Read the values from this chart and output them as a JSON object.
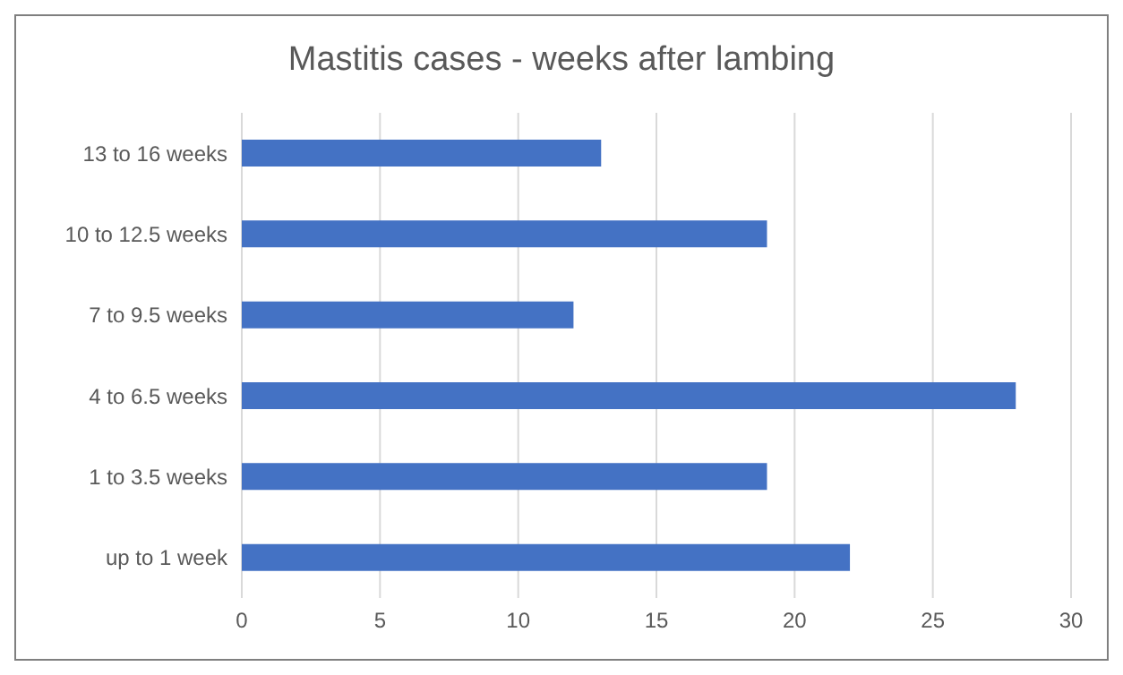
{
  "chart_data": {
    "type": "bar",
    "orientation": "horizontal",
    "title": "Mastitis cases - weeks after lambing",
    "categories": [
      "13 to 16 weeks",
      "10 to 12.5 weeks",
      "7 to  9.5 weeks",
      "4 to 6.5 weeks",
      "1 to 3.5 weeks",
      "up to 1 week"
    ],
    "values": [
      13,
      19,
      12,
      28,
      19,
      22
    ],
    "color": "#4472c4",
    "xlim": [
      0,
      30
    ],
    "xticks": [
      0,
      5,
      10,
      15,
      20,
      25,
      30
    ],
    "grid": "x",
    "legend": false
  }
}
